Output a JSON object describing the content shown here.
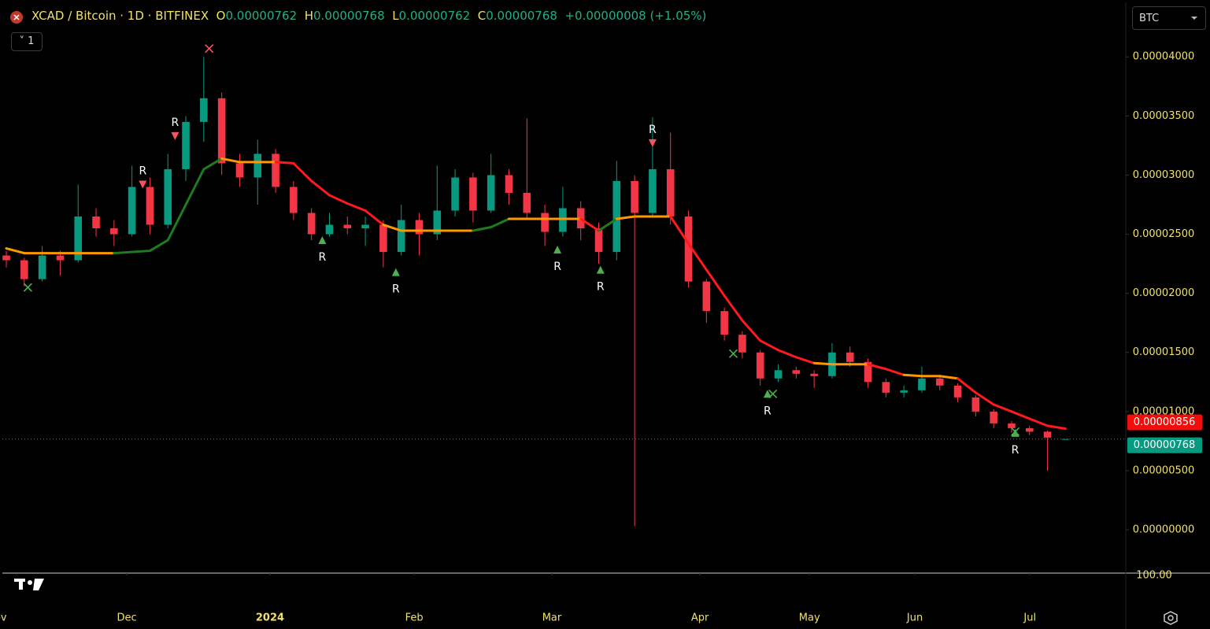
{
  "header": {
    "symbol": "XCAD / Bitcoin · 1D · BITFINEX",
    "o_key": "O",
    "o": "0.00000762",
    "h_key": "H",
    "h": "0.00000768",
    "l_key": "L",
    "l": "0.00000762",
    "c_key": "C",
    "c": "0.00000768",
    "change": "+0.00000008 (+1.05%)",
    "interval_badge": "1",
    "currency": "BTC"
  },
  "chart_data": {
    "type": "candlestick",
    "categories": [
      null,
      null,
      null,
      null,
      null,
      null,
      null,
      null,
      null,
      null,
      null,
      null,
      null,
      null,
      null,
      null,
      null,
      null,
      null,
      null,
      null,
      null,
      null,
      null,
      null,
      null,
      null,
      null,
      null,
      null,
      null,
      null,
      null,
      null,
      null,
      null,
      null,
      null,
      null,
      null,
      null,
      null,
      null,
      null,
      null,
      null,
      null,
      null,
      null,
      null,
      null,
      null,
      null,
      null,
      null,
      null,
      null,
      null,
      null,
      null
    ],
    "open": [
      2.32e-05,
      2.28e-05,
      2.12e-05,
      2.32e-05,
      2.28e-05,
      2.65e-05,
      2.55e-05,
      2.5e-05,
      2.9e-05,
      2.58e-05,
      3.05e-05,
      3.45e-05,
      3.65e-05,
      3.1e-05,
      2.98e-05,
      3.18e-05,
      2.9e-05,
      2.68e-05,
      2.5e-05,
      2.58e-05,
      2.55e-05,
      2.58e-05,
      2.35e-05,
      2.62e-05,
      2.5e-05,
      2.7e-05,
      2.98e-05,
      2.7e-05,
      3e-05,
      2.85e-05,
      2.68e-05,
      2.52e-05,
      2.72e-05,
      2.55e-05,
      2.35e-05,
      2.95e-05,
      2.68e-05,
      3.05e-05,
      2.65e-05,
      2.1e-05,
      1.85e-05,
      1.65e-05,
      1.5e-05,
      1.28e-05,
      1.35e-05,
      1.32e-05,
      1.3e-05,
      1.5e-05,
      1.42e-05,
      1.25e-05,
      1.16e-05,
      1.18e-05,
      1.28e-05,
      1.22e-05,
      1.12e-05,
      1e-05,
      9e-06,
      8.6e-06,
      8.3e-06,
      7.62e-06
    ],
    "high": [
      2.36e-05,
      2.3e-05,
      2.4e-05,
      2.36e-05,
      2.92e-05,
      2.72e-05,
      2.62e-05,
      3.08e-05,
      2.98e-05,
      3.18e-05,
      3.5e-05,
      4e-05,
      3.7e-05,
      3.18e-05,
      3.3e-05,
      3.22e-05,
      2.95e-05,
      2.72e-05,
      2.68e-05,
      2.65e-05,
      2.65e-05,
      2.62e-05,
      2.75e-05,
      2.68e-05,
      3.08e-05,
      3.05e-05,
      3.02e-05,
      3.18e-05,
      3.05e-05,
      3.48e-05,
      2.75e-05,
      2.9e-05,
      2.78e-05,
      2.6e-05,
      3.12e-05,
      3e-05,
      3.49e-05,
      3.36e-05,
      2.7e-05,
      2.12e-05,
      1.88e-05,
      1.68e-05,
      1.52e-05,
      1.4e-05,
      1.38e-05,
      1.35e-05,
      1.58e-05,
      1.55e-05,
      1.45e-05,
      1.28e-05,
      1.22e-05,
      1.38e-05,
      1.3e-05,
      1.24e-05,
      1.14e-05,
      1.02e-05,
      9.2e-06,
      8.8e-06,
      8.4e-06,
      7.68e-06
    ],
    "low": [
      2.22e-05,
      2.06e-05,
      2.1e-05,
      2.15e-05,
      2.26e-05,
      2.48e-05,
      2.4e-05,
      2.48e-05,
      2.5e-05,
      2.55e-05,
      2.95e-05,
      3.28e-05,
      3e-05,
      2.9e-05,
      2.75e-05,
      2.85e-05,
      2.62e-05,
      2.45e-05,
      2.48e-05,
      2.5e-05,
      2.4e-05,
      2.22e-05,
      2.32e-05,
      2.32e-05,
      2.45e-05,
      2.65e-05,
      2.6e-05,
      2.68e-05,
      2.75e-05,
      2.62e-05,
      2.4e-05,
      2.48e-05,
      2.45e-05,
      2.25e-05,
      2.28e-05,
      3e-07,
      2.65e-05,
      2.58e-05,
      2.05e-05,
      1.75e-05,
      1.6e-05,
      1.45e-05,
      1.22e-05,
      1.25e-05,
      1.28e-05,
      1.2e-05,
      1.28e-05,
      1.38e-05,
      1.2e-05,
      1.12e-05,
      1.12e-05,
      1.16e-05,
      1.18e-05,
      1.08e-05,
      9.6e-06,
      8.6e-06,
      8.2e-06,
      8e-06,
      5e-06,
      7.62e-06
    ],
    "close": [
      2.28e-05,
      2.12e-05,
      2.32e-05,
      2.28e-05,
      2.65e-05,
      2.55e-05,
      2.5e-05,
      2.9e-05,
      2.58e-05,
      3.05e-05,
      3.45e-05,
      3.65e-05,
      3.1e-05,
      2.98e-05,
      3.18e-05,
      2.9e-05,
      2.68e-05,
      2.5e-05,
      2.58e-05,
      2.55e-05,
      2.58e-05,
      2.35e-05,
      2.62e-05,
      2.5e-05,
      2.7e-05,
      2.98e-05,
      2.7e-05,
      3e-05,
      2.85e-05,
      2.68e-05,
      2.52e-05,
      2.72e-05,
      2.55e-05,
      2.35e-05,
      2.95e-05,
      2.68e-05,
      3.05e-05,
      2.65e-05,
      2.1e-05,
      1.85e-05,
      1.65e-05,
      1.5e-05,
      1.28e-05,
      1.35e-05,
      1.32e-05,
      1.3e-05,
      1.5e-05,
      1.42e-05,
      1.25e-05,
      1.16e-05,
      1.18e-05,
      1.28e-05,
      1.22e-05,
      1.12e-05,
      1e-05,
      9e-06,
      8.6e-06,
      8.3e-06,
      7.8e-06,
      7.68e-06
    ],
    "up_color": "#089981",
    "down_color": "#f23645",
    "ma": {
      "values": [
        2.38e-05,
        2.34e-05,
        2.34e-05,
        2.34e-05,
        2.34e-05,
        2.34e-05,
        2.34e-05,
        2.35e-05,
        2.36e-05,
        2.45e-05,
        2.75e-05,
        3.05e-05,
        3.14e-05,
        3.11e-05,
        3.11e-05,
        3.11e-05,
        3.1e-05,
        2.95e-05,
        2.83e-05,
        2.76e-05,
        2.7e-05,
        2.58e-05,
        2.53e-05,
        2.53e-05,
        2.53e-05,
        2.53e-05,
        2.53e-05,
        2.56e-05,
        2.63e-05,
        2.63e-05,
        2.63e-05,
        2.63e-05,
        2.63e-05,
        2.53e-05,
        2.63e-05,
        2.65e-05,
        2.65e-05,
        2.65e-05,
        2.42e-05,
        2.2e-05,
        1.98e-05,
        1.77e-05,
        1.6e-05,
        1.52e-05,
        1.46e-05,
        1.41e-05,
        1.4e-05,
        1.4e-05,
        1.4e-05,
        1.36e-05,
        1.31e-05,
        1.3e-05,
        1.3e-05,
        1.28e-05,
        1.16e-05,
        1.06e-05,
        1e-05,
        9.4e-06,
        8.8e-06,
        8.56e-06
      ],
      "colors": [
        "#ff1a1a",
        "#ff9800",
        "#ff9800",
        "#ff9800",
        "#ff9800",
        "#ff9800",
        "#ff9800",
        "#1e7b1e",
        "#1e7b1e",
        "#1e7b1e",
        "#1e7b1e",
        "#1e7b1e",
        "#1e7b1e",
        "#ff9800",
        "#ff9800",
        "#ff9800",
        "#ff1a1a",
        "#ff1a1a",
        "#ff1a1a",
        "#ff1a1a",
        "#ff1a1a",
        "#ff1a1a",
        "#ff9800",
        "#ff9800",
        "#ff9800",
        "#ff9800",
        "#ff9800",
        "#1e7b1e",
        "#1e7b1e",
        "#ff9800",
        "#ff9800",
        "#ff9800",
        "#ff9800",
        "#ff1a1a",
        "#1e7b1e",
        "#ff9800",
        "#ff9800",
        "#ff9800",
        "#ff1a1a",
        "#ff1a1a",
        "#ff1a1a",
        "#ff1a1a",
        "#ff1a1a",
        "#ff1a1a",
        "#ff1a1a",
        "#ff1a1a",
        "#ff9800",
        "#ff9800",
        "#ff9800",
        "#ff1a1a",
        "#ff1a1a",
        "#ff9800",
        "#ff9800",
        "#ff9800",
        "#ff1a1a",
        "#ff1a1a",
        "#ff1a1a",
        "#ff1a1a",
        "#ff1a1a",
        "#ff1a1a"
      ]
    },
    "signals": [
      {
        "label": "R",
        "x": 7.6,
        "y": 2.92e-05,
        "kind": "sell"
      },
      {
        "label": "R",
        "x": 9.4,
        "y": 3.33e-05,
        "kind": "sell"
      },
      {
        "label": "R",
        "x": 17.6,
        "y": 2.45e-05,
        "kind": "buy"
      },
      {
        "label": "R",
        "x": 21.7,
        "y": 2.18e-05,
        "kind": "buy"
      },
      {
        "label": "R",
        "x": 30.7,
        "y": 2.37e-05,
        "kind": "buy"
      },
      {
        "label": "R",
        "x": 33.1,
        "y": 2.2e-05,
        "kind": "buy"
      },
      {
        "label": "R",
        "x": 36.0,
        "y": 3.27e-05,
        "kind": "sell"
      },
      {
        "label": "R",
        "x": 42.4,
        "y": 1.15e-05,
        "kind": "buy"
      },
      {
        "label": "R",
        "x": 56.2,
        "y": 8.2e-06,
        "kind": "buy"
      }
    ],
    "exits": [
      {
        "x": 1.2,
        "y": 2.05e-05,
        "kind": "buy"
      },
      {
        "x": 11.3,
        "y": 4.07e-05,
        "kind": "sell"
      },
      {
        "x": 40.5,
        "y": 1.49e-05,
        "kind": "buy"
      },
      {
        "x": 42.7,
        "y": 1.15e-05,
        "kind": "buy"
      },
      {
        "x": 56.2,
        "y": 8.3e-06,
        "kind": "buy"
      }
    ],
    "price_tags": [
      {
        "value": 8.56e-06,
        "label": "0.00000856",
        "color": "#f20d0d"
      },
      {
        "value": 7.68e-06,
        "label": "0.00000768",
        "color": "#089981"
      }
    ],
    "ylim": [
      -3.66e-06,
      4.461e-05
    ],
    "yticks": [
      {
        "value": 0,
        "label": "0.00000000"
      },
      {
        "value": 5e-06,
        "label": "0.00000500"
      },
      {
        "value": 1e-05,
        "label": "0.00001000"
      },
      {
        "value": 1.5e-05,
        "label": "0.00001500"
      },
      {
        "value": 2e-05,
        "label": "0.00002000"
      },
      {
        "value": 2.5e-05,
        "label": "0.00002500"
      },
      {
        "value": 3e-05,
        "label": "0.00003000"
      },
      {
        "value": 3.5e-05,
        "label": "0.00003500"
      },
      {
        "value": 4e-05,
        "label": "0.00004000"
      }
    ],
    "y_axis_extra_label": "100.00",
    "xlim": [
      -0.22,
      62.36
    ],
    "xticks": [
      {
        "value": -0.53,
        "label": "Nov"
      },
      {
        "value": 6.71,
        "label": "Dec"
      },
      {
        "value": 14.69,
        "label": "2024"
      },
      {
        "value": 22.72,
        "label": "Feb"
      },
      {
        "value": 30.39,
        "label": "Mar"
      },
      {
        "value": 38.64,
        "label": "Apr"
      },
      {
        "value": 44.74,
        "label": "May"
      },
      {
        "value": 50.61,
        "label": "Jun"
      },
      {
        "value": 57.02,
        "label": "Jul"
      }
    ]
  }
}
